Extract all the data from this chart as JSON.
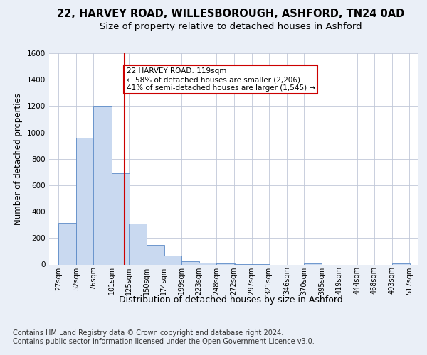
{
  "title_line1": "22, HARVEY ROAD, WILLESBOROUGH, ASHFORD, TN24 0AD",
  "title_line2": "Size of property relative to detached houses in Ashford",
  "xlabel": "Distribution of detached houses by size in Ashford",
  "ylabel": "Number of detached properties",
  "footnote": "Contains HM Land Registry data © Crown copyright and database right 2024.\nContains public sector information licensed under the Open Government Licence v3.0.",
  "bar_left_edges": [
    27,
    52,
    76,
    101,
    125,
    150,
    174,
    199,
    223,
    248,
    272,
    297,
    321,
    346,
    370,
    395,
    419,
    444,
    468,
    493
  ],
  "bar_heights": [
    315,
    960,
    1200,
    690,
    310,
    150,
    65,
    25,
    15,
    10,
    5,
    5,
    0,
    0,
    10,
    0,
    0,
    0,
    0,
    10
  ],
  "bin_width": 25,
  "categories": [
    "27sqm",
    "52sqm",
    "76sqm",
    "101sqm",
    "125sqm",
    "150sqm",
    "174sqm",
    "199sqm",
    "223sqm",
    "248sqm",
    "272sqm",
    "297sqm",
    "321sqm",
    "346sqm",
    "370sqm",
    "395sqm",
    "419sqm",
    "444sqm",
    "468sqm",
    "493sqm",
    "517sqm"
  ],
  "tick_positions": [
    27,
    52,
    76,
    101,
    125,
    150,
    174,
    199,
    223,
    248,
    272,
    297,
    321,
    346,
    370,
    395,
    419,
    444,
    468,
    493,
    517
  ],
  "bar_color": "#c9d9f0",
  "bar_edge_color": "#5b8ac7",
  "highlight_x": 119,
  "highlight_color": "#cc0000",
  "annotation_text": "22 HARVEY ROAD: 119sqm\n← 58% of detached houses are smaller (2,206)\n41% of semi-detached houses are larger (1,545) →",
  "annotation_box_color": "white",
  "annotation_box_edge": "#cc0000",
  "ylim": [
    0,
    1600
  ],
  "yticks": [
    0,
    200,
    400,
    600,
    800,
    1000,
    1200,
    1400,
    1600
  ],
  "xlim_left": 14,
  "xlim_right": 530,
  "bg_color": "#eaeff7",
  "plot_bg_color": "white",
  "grid_color": "#c0c8d8",
  "title1_fontsize": 10.5,
  "title2_fontsize": 9.5,
  "xlabel_fontsize": 9,
  "ylabel_fontsize": 8.5,
  "footnote_fontsize": 7,
  "tick_fontsize": 7,
  "ytick_fontsize": 7.5
}
